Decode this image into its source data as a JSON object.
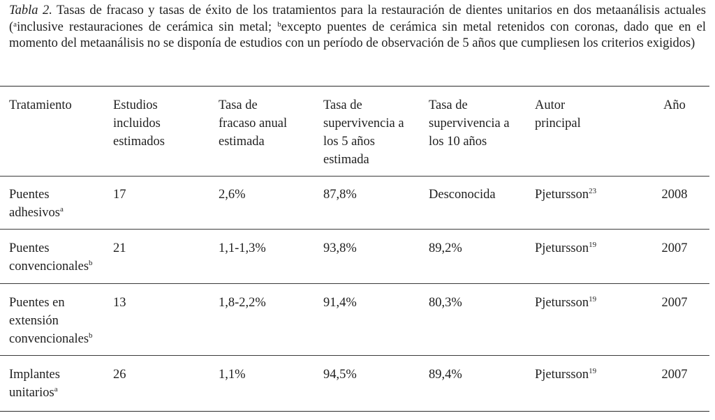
{
  "caption": {
    "label": "Tabla 2.",
    "text_1": " Tasas de fracaso y tasas de éxito de los tratamientos para la restauración de dientes unitarios en dos metaanálisis actuales (",
    "sup_a": "a",
    "text_2": "inclusive restauraciones de cerámica sin metal; ",
    "sup_b": "b",
    "text_3": "excepto puentes de cerámica sin metal retenidos con coronas, dado que en el momento del metaanálisis no se disponía de estudios con un período de observación de 5 años que cumpliesen los criterios exigidos)"
  },
  "headers": [
    [
      "Tratamiento"
    ],
    [
      "Estudios",
      "incluidos",
      "estimados"
    ],
    [
      "Tasa de",
      "fracaso anual",
      "estimada"
    ],
    [
      "Tasa de",
      "supervivencia a",
      "los 5 años",
      "estimada"
    ],
    [
      "Tasa de",
      "supervivencia a",
      "los 10 años"
    ],
    [
      "Autor",
      "principal"
    ],
    [
      "Año"
    ]
  ],
  "rows": [
    {
      "tratamiento": [
        "Puentes",
        "adhesivos"
      ],
      "tratamiento_sup": "a",
      "estudios": "17",
      "fracaso": "2,6%",
      "sup5": "87,8%",
      "sup10": "Desconocida",
      "autor": "Pjetursson",
      "ref": "23",
      "anio": "2008"
    },
    {
      "tratamiento": [
        "Puentes",
        "convencionales"
      ],
      "tratamiento_sup": "b",
      "estudios": "21",
      "fracaso": "1,1-1,3%",
      "sup5": "93,8%",
      "sup10": "89,2%",
      "autor": "Pjetursson",
      "ref": "19",
      "anio": "2007"
    },
    {
      "tratamiento": [
        "Puentes en",
        "extensión",
        "convencionales"
      ],
      "tratamiento_sup": "b",
      "estudios": "13",
      "fracaso": "1,8-2,2%",
      "sup5": "91,4%",
      "sup10": "80,3%",
      "autor": "Pjetursson",
      "ref": "19",
      "anio": "2007"
    },
    {
      "tratamiento": [
        "Implantes",
        "unitarios"
      ],
      "tratamiento_sup": "a",
      "estudios": "26",
      "fracaso": "1,1%",
      "sup5": "94,5%",
      "sup10": "89,4%",
      "autor": "Pjetursson",
      "ref": "19",
      "anio": "2007"
    }
  ]
}
